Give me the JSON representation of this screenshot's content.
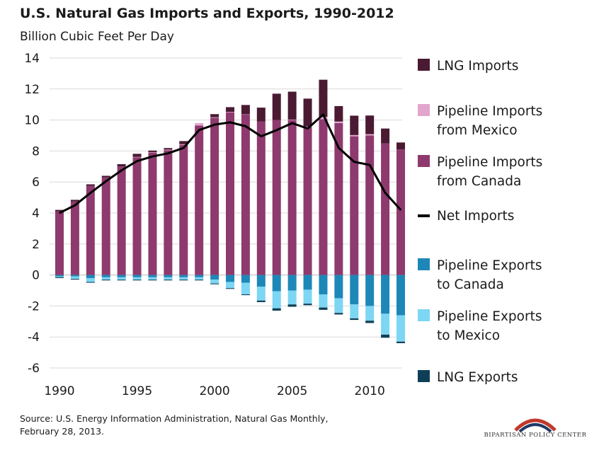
{
  "chart_data": {
    "type": "bar",
    "title": "U.S. Natural Gas Imports and Exports, 1990-2012",
    "subtitle": "Billion Cubic Feet Per Day",
    "xlabel": "",
    "ylabel": "",
    "ylim": [
      -6,
      14
    ],
    "yticks": [
      14,
      12,
      10,
      8,
      6,
      4,
      2,
      0,
      -2,
      -4,
      -6
    ],
    "xticks": [
      1990,
      1995,
      2000,
      2005,
      2010
    ],
    "stacked": true,
    "grid": "horizontal",
    "legend": "right",
    "categories": [
      1990,
      1991,
      1992,
      1993,
      1994,
      1995,
      1996,
      1997,
      1998,
      1999,
      2000,
      2001,
      2002,
      2003,
      2004,
      2005,
      2006,
      2007,
      2008,
      2009,
      2010,
      2011,
      2012
    ],
    "series": [
      {
        "name": "Pipeline Imports from Canada",
        "kind": "bar",
        "color": "#8E3A6E",
        "values": [
          4.1,
          4.75,
          5.75,
          6.3,
          7.0,
          7.6,
          7.9,
          8.05,
          8.4,
          9.65,
          10.15,
          10.5,
          10.35,
          9.9,
          10.0,
          10.0,
          9.55,
          10.05,
          9.8,
          8.95,
          9.0,
          8.5,
          8.1
        ]
      },
      {
        "name": "Pipeline Imports from Mexico",
        "kind": "bar",
        "color": "#E2A6CE",
        "values": [
          0.0,
          0.0,
          0.0,
          0.0,
          0.0,
          0.02,
          0.03,
          0.04,
          0.04,
          0.15,
          0.03,
          0.03,
          0.02,
          0.0,
          0.0,
          0.03,
          0.03,
          0.15,
          0.1,
          0.08,
          0.09,
          0.0,
          0.0
        ]
      },
      {
        "name": "LNG Imports",
        "kind": "bar",
        "color": "#4A1A33",
        "values": [
          0.1,
          0.1,
          0.1,
          0.1,
          0.15,
          0.2,
          0.1,
          0.1,
          0.2,
          0.0,
          0.2,
          0.3,
          0.6,
          0.9,
          1.7,
          1.8,
          1.8,
          2.4,
          1.0,
          1.25,
          1.2,
          0.95,
          0.45
        ]
      },
      {
        "name": "Pipeline Exports to Canada",
        "kind": "bar",
        "color": "#1D87B8",
        "values": [
          -0.1,
          -0.1,
          -0.2,
          -0.15,
          -0.15,
          -0.15,
          -0.15,
          -0.15,
          -0.15,
          -0.15,
          -0.3,
          -0.45,
          -0.5,
          -0.75,
          -1.05,
          -1.0,
          -0.95,
          -1.25,
          -1.5,
          -1.9,
          -2.0,
          -2.5,
          -2.6
        ]
      },
      {
        "name": "Pipeline Exports to Mexico",
        "kind": "bar",
        "color": "#7DD6F3",
        "values": [
          -0.05,
          -0.15,
          -0.25,
          -0.15,
          -0.15,
          -0.15,
          -0.15,
          -0.15,
          -0.15,
          -0.15,
          -0.25,
          -0.4,
          -0.75,
          -0.9,
          -1.1,
          -0.9,
          -0.9,
          -0.85,
          -0.95,
          -0.9,
          -0.95,
          -1.35,
          -1.7
        ]
      },
      {
        "name": "LNG Exports",
        "kind": "bar",
        "color": "#0F3F57",
        "values": [
          -0.05,
          -0.05,
          -0.05,
          -0.05,
          -0.05,
          -0.05,
          -0.05,
          -0.05,
          -0.05,
          -0.05,
          -0.05,
          -0.05,
          -0.05,
          -0.1,
          -0.15,
          -0.15,
          -0.1,
          -0.15,
          -0.1,
          -0.1,
          -0.15,
          -0.2,
          -0.1
        ]
      },
      {
        "name": "Net Imports",
        "kind": "line",
        "color": "#000000",
        "values": [
          4.0,
          4.5,
          5.3,
          6.05,
          6.75,
          7.35,
          7.65,
          7.85,
          8.2,
          9.35,
          9.7,
          9.85,
          9.6,
          8.95,
          9.35,
          9.8,
          9.45,
          10.35,
          8.2,
          7.3,
          7.1,
          5.3,
          4.2
        ]
      }
    ]
  },
  "legend": {
    "items": [
      {
        "label": "LNG Imports",
        "color": "#4A1A33",
        "kind": "bar"
      },
      {
        "label": "Pipeline Imports\nfrom Mexico",
        "color": "#E2A6CE",
        "kind": "bar"
      },
      {
        "label": "Pipeline Imports\nfrom Canada",
        "color": "#8E3A6E",
        "kind": "bar"
      },
      {
        "label": "Net Imports",
        "color": "#000000",
        "kind": "line"
      },
      {
        "label": "Pipeline Exports\nto Canada",
        "color": "#1D87B8",
        "kind": "bar"
      },
      {
        "label": "Pipeline Exports\nto Mexico",
        "color": "#7DD6F3",
        "kind": "bar"
      },
      {
        "label": "LNG Exports",
        "color": "#0F3F57",
        "kind": "bar"
      }
    ]
  },
  "source": "Source: U.S. Energy Information Administration, Natural Gas Monthly,\nFebruary 28, 2013.",
  "logo": {
    "text": "BIPARTISAN POLICY CENTER",
    "colors": [
      "#C0392B",
      "#1F3A66"
    ]
  }
}
